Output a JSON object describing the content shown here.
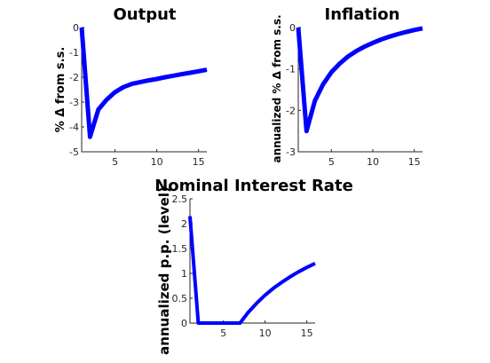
{
  "colors": {
    "series": "#0000ff",
    "axis": "#262626"
  },
  "chart_data": [
    {
      "type": "line",
      "title": "Output",
      "ylabel": "% Δ from s.s.",
      "xlabel": "",
      "xlim": [
        1,
        16
      ],
      "ylim": [
        -5,
        0
      ],
      "xticks": [
        5,
        10,
        15
      ],
      "yticks": [
        -5,
        -4,
        -3,
        -2,
        -1,
        0
      ],
      "grid": false,
      "x": [
        1,
        2,
        3,
        4,
        5,
        6,
        7,
        8,
        9,
        10,
        11,
        12,
        13,
        14,
        15,
        16
      ],
      "series": [
        {
          "color": "#0000ff",
          "values": [
            0,
            -4.4,
            -3.3,
            -2.9,
            -2.6,
            -2.4,
            -2.27,
            -2.2,
            -2.13,
            -2.07,
            -2.0,
            -1.94,
            -1.88,
            -1.82,
            -1.76,
            -1.7
          ]
        }
      ]
    },
    {
      "type": "line",
      "title": "Inflation",
      "ylabel": "annualized % Δ from s.s.",
      "xlabel": "",
      "xlim": [
        1,
        16
      ],
      "ylim": [
        -3,
        0
      ],
      "xticks": [
        5,
        10,
        15
      ],
      "yticks": [
        -3,
        -2,
        -1,
        0
      ],
      "grid": false,
      "x": [
        1,
        2,
        3,
        4,
        5,
        6,
        7,
        8,
        9,
        10,
        11,
        12,
        13,
        14,
        15,
        16
      ],
      "series": [
        {
          "color": "#0000ff",
          "values": [
            0,
            -2.5,
            -1.77,
            -1.37,
            -1.08,
            -0.87,
            -0.7,
            -0.57,
            -0.46,
            -0.37,
            -0.29,
            -0.22,
            -0.16,
            -0.11,
            -0.06,
            -0.02
          ]
        }
      ]
    },
    {
      "type": "line",
      "title": "Nominal Interest Rate",
      "ylabel": "annualized p.p. (level)",
      "xlabel": "",
      "xlim": [
        1,
        16
      ],
      "ylim": [
        0,
        2.5
      ],
      "xticks": [
        5,
        10,
        15
      ],
      "yticks": [
        0,
        0.5,
        1,
        1.5,
        2,
        2.5
      ],
      "grid": false,
      "x": [
        1,
        2,
        3,
        4,
        5,
        6,
        7,
        8,
        9,
        10,
        11,
        12,
        13,
        14,
        15,
        16
      ],
      "series": [
        {
          "color": "#0000ff",
          "values": [
            2.15,
            0,
            0,
            0,
            0,
            0,
            0,
            0.22,
            0.4,
            0.56,
            0.7,
            0.82,
            0.93,
            1.03,
            1.12,
            1.2
          ]
        }
      ]
    }
  ]
}
